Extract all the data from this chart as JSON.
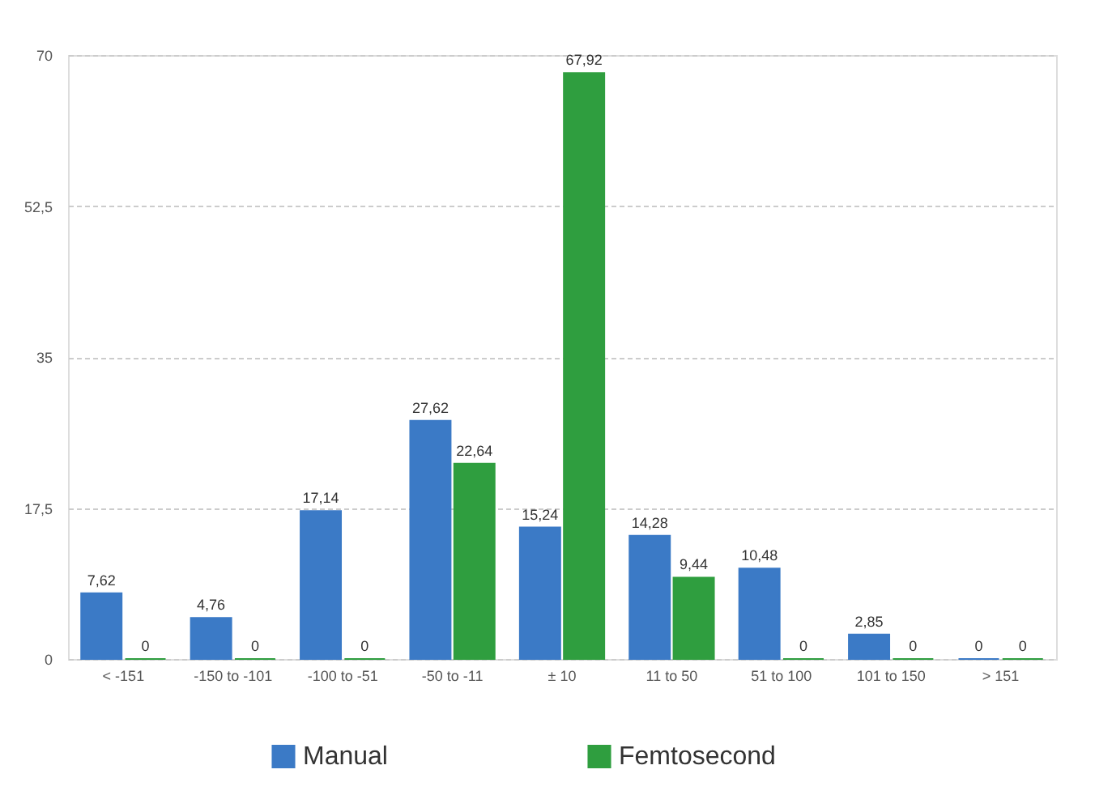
{
  "chart_data": {
    "type": "bar",
    "categories": [
      "< -151",
      "-150 to -101",
      "-100 to -51",
      "-50 to -11",
      "± 10",
      "11 to 50",
      "51 to 100",
      "101 to 150",
      "> 151"
    ],
    "series": [
      {
        "name": "Manual",
        "color": "#3b7ac6",
        "values": [
          7.62,
          4.76,
          17.14,
          27.62,
          15.24,
          14.28,
          10.48,
          2.85,
          0
        ],
        "value_labels": [
          "7,62",
          "4,76",
          "17,14",
          "27,62",
          "15,24",
          "14,28",
          "10,48",
          "2,85",
          "0"
        ]
      },
      {
        "name": "Femtosecond",
        "color": "#2f9e3f",
        "values": [
          0,
          0,
          0,
          22.64,
          67.92,
          9.44,
          0,
          0,
          0
        ],
        "value_labels": [
          "0",
          "0",
          "0",
          "22,64",
          "67,92",
          "9,44",
          "0",
          "0",
          "0"
        ]
      }
    ],
    "ylim": [
      0,
      70
    ],
    "yticks": [
      0,
      {
        "value": 17.5,
        "label": "17,5"
      },
      35,
      {
        "value": 52.5,
        "label": "52,5"
      },
      70
    ],
    "grid": "y",
    "legend": "bottom"
  }
}
